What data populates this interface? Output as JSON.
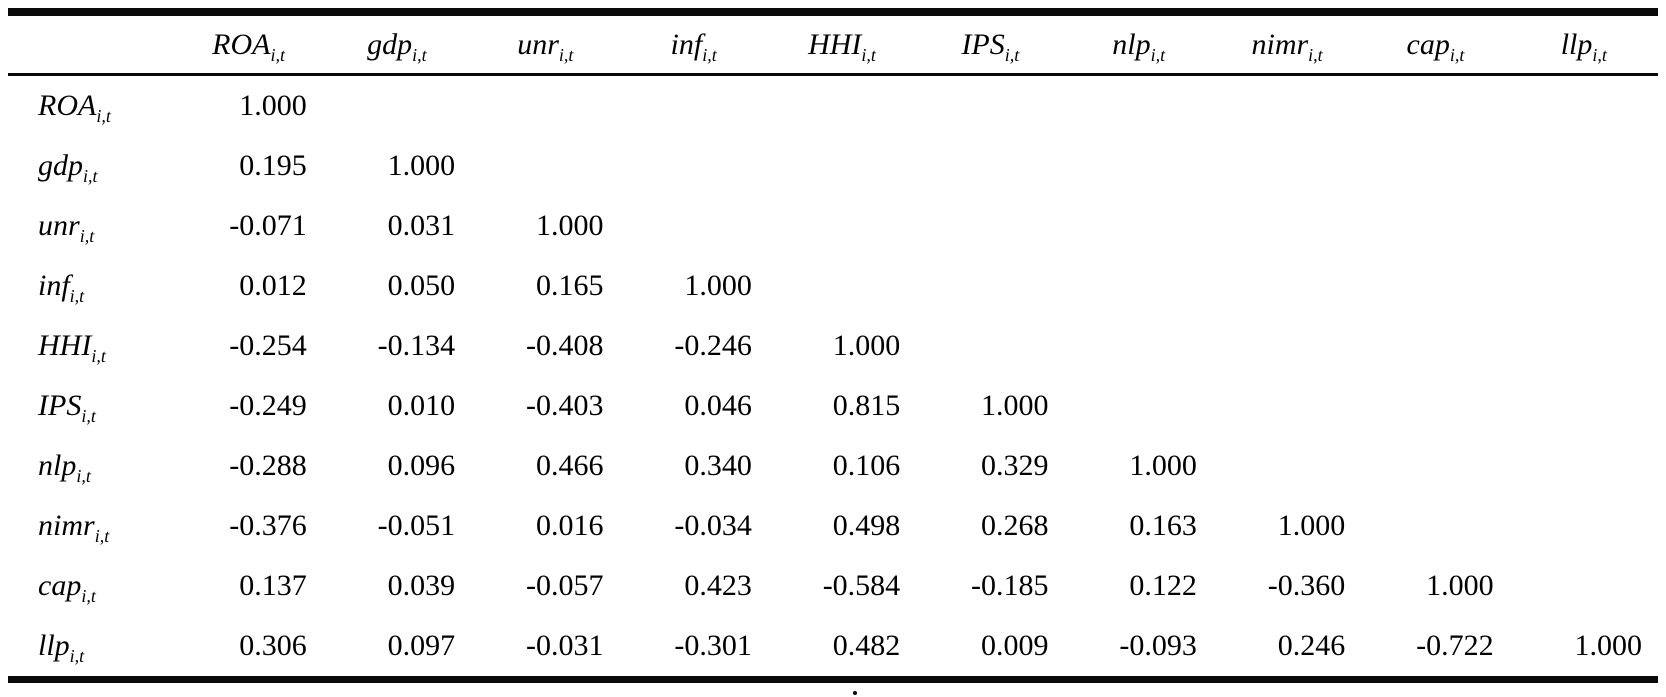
{
  "table": {
    "kind": "correlation-matrix",
    "subscript": "i,t",
    "headers": [
      {
        "name": "ROA",
        "sub": "i,t"
      },
      {
        "name": "gdp",
        "sub": "i,t"
      },
      {
        "name": "unr",
        "sub": "i,t"
      },
      {
        "name": "inf",
        "sub": "i,t"
      },
      {
        "name": "HHI",
        "sub": "i,t"
      },
      {
        "name": "IPS",
        "sub": "i,t"
      },
      {
        "name": "nlp",
        "sub": "i,t"
      },
      {
        "name": "nimr",
        "sub": "i,t"
      },
      {
        "name": "cap",
        "sub": "i,t"
      },
      {
        "name": "llp",
        "sub": "i,t"
      }
    ],
    "rows": [
      {
        "label": {
          "name": "ROA",
          "sub": "i,t"
        },
        "values": [
          "1.000"
        ]
      },
      {
        "label": {
          "name": "gdp",
          "sub": "i,t"
        },
        "values": [
          "0.195",
          "1.000"
        ]
      },
      {
        "label": {
          "name": "unr",
          "sub": "i,t"
        },
        "values": [
          "-0.071",
          "0.031",
          "1.000"
        ]
      },
      {
        "label": {
          "name": "inf",
          "sub": "i,t"
        },
        "values": [
          "0.012",
          "0.050",
          "0.165",
          "1.000"
        ]
      },
      {
        "label": {
          "name": "HHI",
          "sub": "i,t"
        },
        "values": [
          "-0.254",
          "-0.134",
          "-0.408",
          "-0.246",
          "1.000"
        ]
      },
      {
        "label": {
          "name": "IPS",
          "sub": "i,t"
        },
        "values": [
          "-0.249",
          "0.010",
          "-0.403",
          "0.046",
          "0.815",
          "1.000"
        ]
      },
      {
        "label": {
          "name": "nlp",
          "sub": "i,t"
        },
        "values": [
          "-0.288",
          "0.096",
          "0.466",
          "0.340",
          "0.106",
          "0.329",
          "1.000"
        ]
      },
      {
        "label": {
          "name": "nimr",
          "sub": "i,t"
        },
        "values": [
          "-0.376",
          "-0.051",
          "0.016",
          "-0.034",
          "0.498",
          "0.268",
          "0.163",
          "1.000"
        ]
      },
      {
        "label": {
          "name": "cap",
          "sub": "i,t"
        },
        "values": [
          "0.137",
          "0.039",
          "-0.057",
          "0.423",
          "-0.584",
          "-0.185",
          "0.122",
          "-0.360",
          "1.000"
        ]
      },
      {
        "label": {
          "name": "llp",
          "sub": "i,t"
        },
        "values": [
          "0.306",
          "0.097",
          "-0.031",
          "-0.301",
          "0.482",
          "0.009",
          "-0.093",
          "0.246",
          "-0.722",
          "1.000"
        ]
      }
    ]
  },
  "colors": {
    "ink": "#0a0a0a",
    "background": "#ffffff"
  }
}
